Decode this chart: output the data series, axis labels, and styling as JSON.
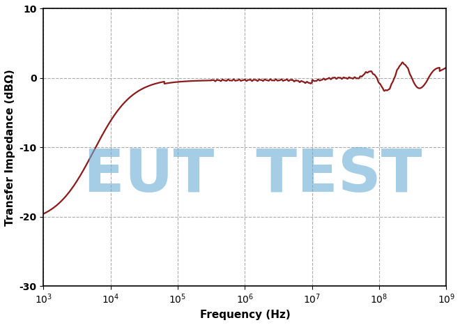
{
  "xlabel": "Frequency (Hz)",
  "ylabel": "Transfer Impedance (dBΩ)",
  "xlim_log": [
    3,
    9
  ],
  "ylim": [
    -30,
    10
  ],
  "yticks": [
    -30,
    -20,
    -10,
    0,
    10
  ],
  "line_color": "#8B1A1A",
  "line_width": 1.6,
  "watermark_text": "EUT  TEST",
  "watermark_color": "#6aaed6",
  "watermark_alpha": 0.6,
  "watermark_fontsize": 62,
  "grid_color": "#aaaaaa",
  "grid_linestyle": "--",
  "grid_linewidth": 0.8,
  "axis_label_fontsize": 11,
  "tick_fontsize": 10,
  "fig_width": 6.6,
  "fig_height": 4.66,
  "dpi": 100
}
